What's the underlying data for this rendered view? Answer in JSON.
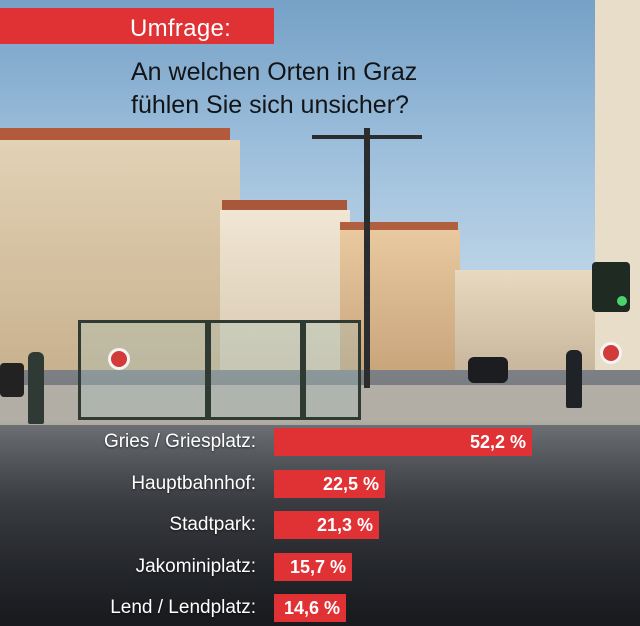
{
  "header": {
    "tag": "Umfrage:",
    "title_line1": "An welchen Orten in Graz",
    "title_line2": "fühlen Sie sich unsicher?"
  },
  "colors": {
    "accent": "#e03134",
    "label_text": "#ffffff",
    "title_text": "#121417"
  },
  "chart_data": {
    "type": "bar",
    "orientation": "horizontal",
    "categories": [
      "Gries / Griesplatz:",
      "Hauptbahnhof:",
      "Stadtpark:",
      "Jakominiplatz:",
      "Lend / Lendplatz:"
    ],
    "values": [
      52.2,
      22.5,
      21.3,
      15.7,
      14.6
    ],
    "value_labels": [
      "52,2 %",
      "22,5 %",
      "21,3 %",
      "15,7 %",
      "14,6 %"
    ],
    "unit": "%",
    "grid": false,
    "legend": "none"
  }
}
